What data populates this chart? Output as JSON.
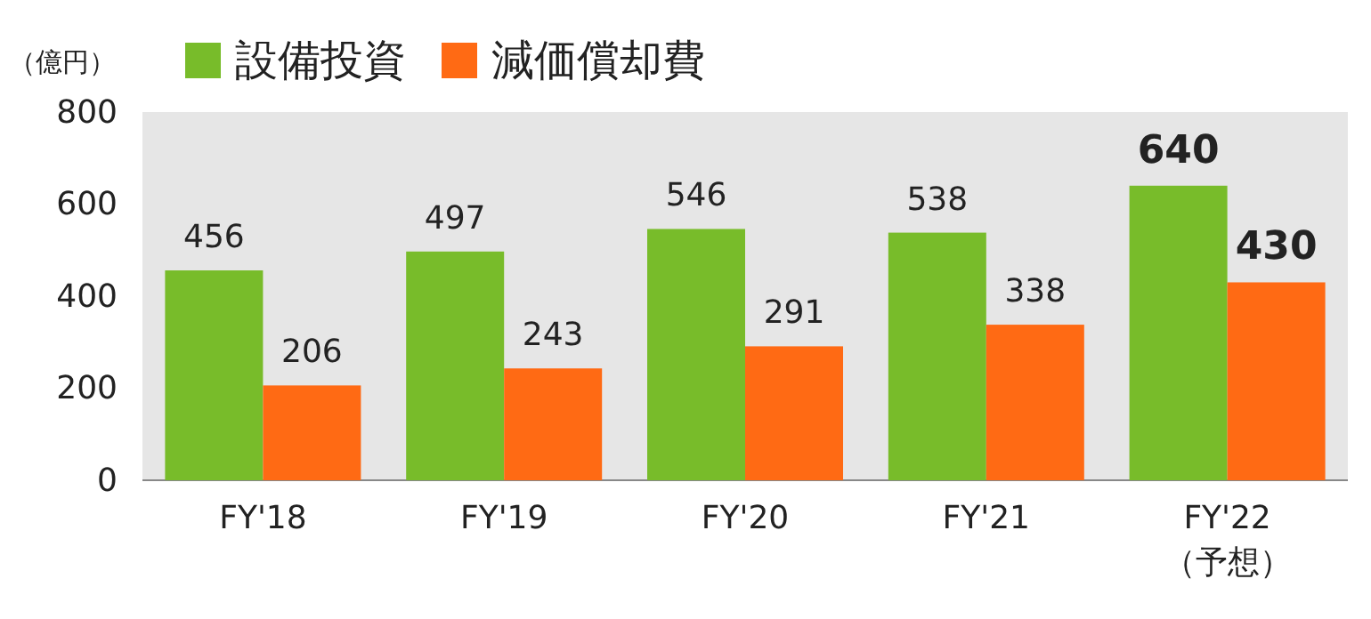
{
  "chart_data": {
    "type": "bar",
    "ylabel": "（億円）",
    "categories": [
      "FY'18",
      "FY'19",
      "FY'20",
      "FY'21",
      "FY'22\n（予想）"
    ],
    "series": [
      {
        "name": "設備投資",
        "color": "#78bc2a",
        "values": [
          456,
          497,
          546,
          538,
          640
        ]
      },
      {
        "name": "減価償却費",
        "color": "#ff6a14",
        "values": [
          206,
          243,
          291,
          338,
          430
        ]
      }
    ],
    "ylim": [
      0,
      800
    ],
    "yticks": [
      0,
      200,
      400,
      600,
      800
    ],
    "data_labels": true,
    "legend": "top left",
    "grid": false
  }
}
